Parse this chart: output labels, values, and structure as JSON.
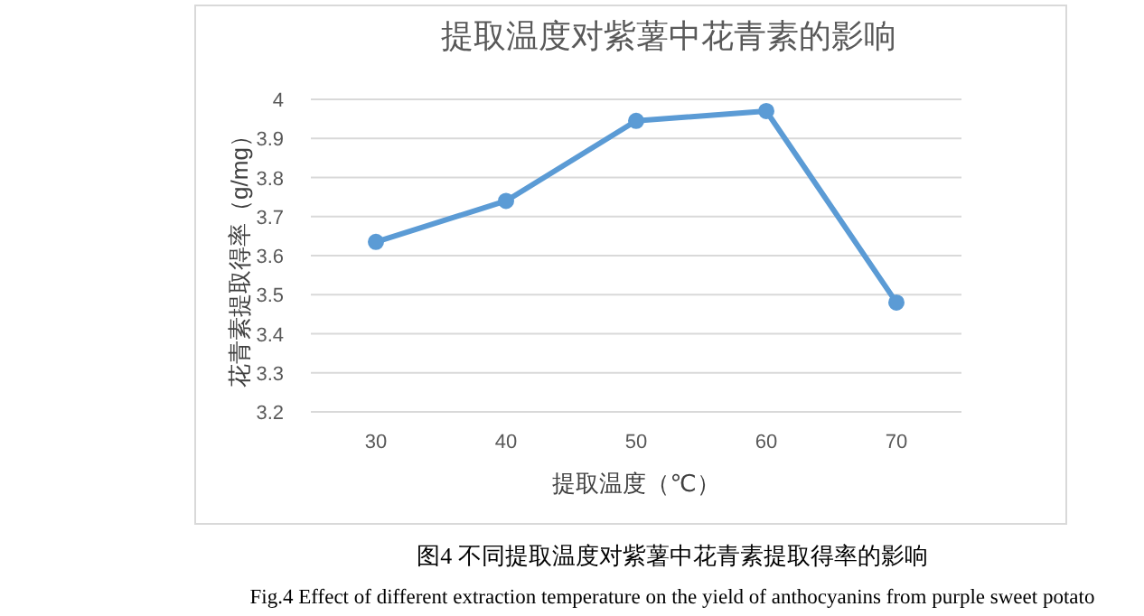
{
  "chart_data": {
    "type": "line",
    "title": "提取温度对紫薯中花青素的影响",
    "xlabel": "提取温度（℃）",
    "ylabel": "花青素提取得率（g/mg）",
    "categories": [
      "30",
      "40",
      "50",
      "60",
      "70"
    ],
    "series": [
      {
        "color": "#5b9bd5",
        "values": [
          3.635,
          3.74,
          3.945,
          3.97,
          3.48
        ]
      }
    ],
    "ylim": [
      3.2,
      4
    ],
    "yticks": [
      3.2,
      3.3,
      3.4,
      3.5,
      3.6,
      3.7,
      3.8,
      3.9,
      4
    ],
    "grid": "y",
    "marker": "circle",
    "line_style": "solid",
    "annotations": [
      "图4 不同提取温度对紫薯中花青素提取得率的影响",
      "Fig.4 Effect of different extraction temperature on the yield of anthocyanins from purple sweet potato"
    ]
  }
}
